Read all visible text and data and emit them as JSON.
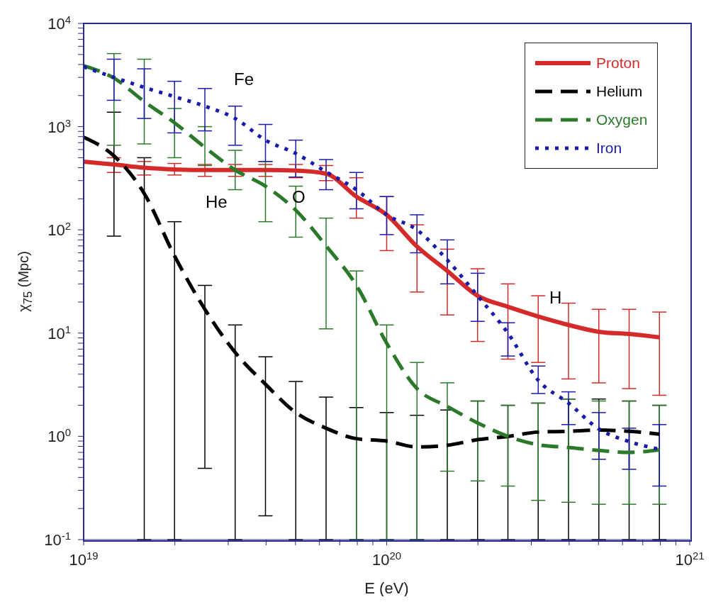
{
  "chart_data": {
    "type": "line",
    "xlabel": "E (eV)",
    "ylabel": "χ$_{75}$ (Mpc)",
    "log": "xy",
    "grid": false,
    "legend": "top right",
    "marker": "none",
    "xlim": [
      1e+19,
      1e+21
    ],
    "xticks": [
      {
        "value": 1e+19,
        "label": "10$^{19}$"
      },
      {
        "value": 2e+19,
        "label": null
      },
      {
        "value": 3e+19,
        "label": null
      },
      {
        "value": 4e+19,
        "label": null
      },
      {
        "value": 5e+19,
        "label": null
      },
      {
        "value": 6e+19,
        "label": null
      },
      {
        "value": 7e+19,
        "label": null
      },
      {
        "value": 8e+19,
        "label": null
      },
      {
        "value": 9e+19,
        "label": null
      },
      {
        "value": 1e+20,
        "label": "10$^{20}$"
      },
      {
        "value": 2e+20,
        "label": null
      },
      {
        "value": 3e+20,
        "label": null
      },
      {
        "value": 4e+20,
        "label": null
      },
      {
        "value": 5e+20,
        "label": null
      },
      {
        "value": 6e+20,
        "label": null
      },
      {
        "value": 7e+20,
        "label": null
      },
      {
        "value": 8e+20,
        "label": null
      },
      {
        "value": 9e+20,
        "label": null
      },
      {
        "value": 1e+21,
        "label": "10$^{21}$"
      }
    ],
    "ylim": [
      0.1,
      10000
    ],
    "yticks": [
      {
        "value": 0.1,
        "label": "10$^{-1}$"
      },
      {
        "value": 0.2,
        "label": null
      },
      {
        "value": 0.3,
        "label": null
      },
      {
        "value": 0.4,
        "label": null
      },
      {
        "value": 0.5,
        "label": null
      },
      {
        "value": 0.6,
        "label": null
      },
      {
        "value": 0.7,
        "label": null
      },
      {
        "value": 0.8,
        "label": null
      },
      {
        "value": 0.9,
        "label": null
      },
      {
        "value": 1,
        "label": "10$^{0}$"
      },
      {
        "value": 2,
        "label": null
      },
      {
        "value": 3,
        "label": null
      },
      {
        "value": 4,
        "label": null
      },
      {
        "value": 5,
        "label": null
      },
      {
        "value": 6,
        "label": null
      },
      {
        "value": 7,
        "label": null
      },
      {
        "value": 8,
        "label": null
      },
      {
        "value": 9,
        "label": null
      },
      {
        "value": 10,
        "label": "10$^{1}$"
      },
      {
        "value": 20,
        "label": null
      },
      {
        "value": 30,
        "label": null
      },
      {
        "value": 40,
        "label": null
      },
      {
        "value": 50,
        "label": null
      },
      {
        "value": 60,
        "label": null
      },
      {
        "value": 70,
        "label": null
      },
      {
        "value": 80,
        "label": null
      },
      {
        "value": 90,
        "label": null
      },
      {
        "value": 100,
        "label": "10$^{2}$"
      },
      {
        "value": 200,
        "label": null
      },
      {
        "value": 300,
        "label": null
      },
      {
        "value": 400,
        "label": null
      },
      {
        "value": 500,
        "label": null
      },
      {
        "value": 600,
        "label": null
      },
      {
        "value": 700,
        "label": null
      },
      {
        "value": 800,
        "label": null
      },
      {
        "value": 900,
        "label": null
      },
      {
        "value": 1000,
        "label": "10$^{3}$"
      },
      {
        "value": 2000,
        "label": null
      },
      {
        "value": 3000,
        "label": null
      },
      {
        "value": 4000,
        "label": null
      },
      {
        "value": 5000,
        "label": null
      },
      {
        "value": 6000,
        "label": null
      },
      {
        "value": 7000,
        "label": null
      },
      {
        "value": 8000,
        "label": null
      },
      {
        "value": 9000,
        "label": null
      },
      {
        "value": 10000,
        "label": "10$^{4}$"
      }
    ],
    "x": [
      1e+19,
      1.259e+19,
      1.585e+19,
      1.995e+19,
      2.512e+19,
      3.162e+19,
      3.981e+19,
      5.012e+19,
      6.31e+19,
      7.943e+19,
      1e+20,
      1.259e+20,
      1.585e+20,
      1.995e+20,
      2.512e+20,
      3.162e+20,
      3.981e+20,
      5.012e+20,
      6.31e+20,
      7.943e+20
    ],
    "series": [
      {
        "name": "Proton",
        "color": "#d42a2a",
        "line_style": "solid",
        "values": [
          457,
          430,
          400,
          385,
          380,
          380,
          380,
          375,
          350,
          210,
          140,
          69,
          40,
          23,
          18,
          14.5,
          12,
          10.3,
          9.8,
          9.1
        ],
        "errors": [
          null,
          [
            360,
            500
          ],
          [
            340,
            460
          ],
          [
            340,
            440
          ],
          [
            330,
            430
          ],
          [
            330,
            430
          ],
          [
            330,
            430
          ],
          [
            320,
            430
          ],
          [
            300,
            420
          ],
          [
            130,
            320
          ],
          [
            63,
            210
          ],
          [
            25,
            112
          ],
          [
            15,
            65
          ],
          [
            8.3,
            42
          ],
          [
            5.6,
            30
          ],
          [
            5.2,
            23
          ],
          [
            3.6,
            19.5
          ],
          [
            3.3,
            17
          ],
          [
            2.9,
            17
          ],
          [
            2.5,
            16
          ]
        ]
      },
      {
        "name": "Helium",
        "color": "#000000",
        "line_style": "dashed",
        "values": [
          790,
          520,
          225,
          56,
          17,
          6.5,
          3.2,
          1.7,
          1.2,
          0.95,
          0.9,
          0.79,
          0.82,
          0.93,
          1.0,
          1.1,
          1.12,
          1.15,
          1.12,
          1.05
        ],
        "errors": [
          null,
          [
            87,
            1380
          ],
          [
            0.1,
            500
          ],
          [
            0.1,
            120
          ],
          [
            0.49,
            29
          ],
          [
            0.1,
            12
          ],
          [
            0.17,
            5.9
          ],
          [
            0.1,
            3.4
          ],
          [
            0.1,
            2.4
          ],
          [
            0.1,
            1.9
          ],
          [
            0.1,
            1.7
          ],
          [
            0.1,
            1.6
          ],
          [
            0.1,
            1.8
          ],
          [
            0.1,
            2.2
          ],
          [
            0.1,
            2.0
          ],
          [
            0.1,
            2.1
          ],
          [
            0.1,
            2.3
          ],
          [
            0.1,
            2.3
          ],
          [
            0.1,
            2.2
          ],
          [
            0.1,
            2.0
          ]
        ]
      },
      {
        "name": "Oxygen",
        "color": "#2a7a2a",
        "line_style": "dashed",
        "values": [
          3900,
          2950,
          1750,
          1090,
          630,
          380,
          265,
          155,
          70,
          29,
          8.0,
          2.9,
          1.95,
          1.35,
          1.0,
          0.83,
          0.78,
          0.73,
          0.7,
          0.74
        ],
        "errors": [
          null,
          [
            660,
            5100
          ],
          [
            680,
            4500
          ],
          [
            500,
            1500
          ],
          [
            420,
            1000
          ],
          [
            245,
            590
          ],
          [
            120,
            460
          ],
          [
            85,
            265
          ],
          [
            11,
            130
          ],
          [
            0.1,
            40
          ],
          [
            0.1,
            12
          ],
          [
            0.1,
            5.2
          ],
          [
            0.46,
            3.3
          ],
          [
            0.37,
            2.2
          ],
          [
            0.33,
            2.0
          ],
          [
            0.24,
            2.1
          ],
          [
            0.23,
            2.3
          ],
          [
            0.22,
            2.2
          ],
          [
            0.22,
            2.2
          ],
          [
            0.22,
            2.0
          ]
        ]
      },
      {
        "name": "Iron",
        "color": "#1a1aaa",
        "line_style": "dotted",
        "values": [
          3800,
          3000,
          2400,
          1950,
          1580,
          1200,
          740,
          550,
          365,
          245,
          140,
          100,
          51,
          23,
          10,
          3.5,
          2.1,
          1.18,
          0.89,
          0.75
        ],
        "errors": [
          null,
          [
            1800,
            4500
          ],
          [
            1200,
            3630
          ],
          [
            870,
            2750
          ],
          [
            910,
            2340
          ],
          [
            660,
            1580
          ],
          [
            460,
            1050
          ],
          [
            325,
            740
          ],
          [
            245,
            480
          ],
          [
            160,
            360
          ],
          [
            90,
            210
          ],
          [
            60,
            140
          ],
          [
            30,
            80
          ],
          [
            13,
            38
          ],
          [
            6,
            12.6
          ],
          [
            2.6,
            4.8
          ],
          [
            1.3,
            2.7
          ],
          [
            0.6,
            1.7
          ],
          [
            0.48,
            1.2
          ],
          [
            0.33,
            1.3
          ]
        ]
      }
    ],
    "annotations": [
      "Fe",
      "He",
      "O",
      "H"
    ]
  }
}
